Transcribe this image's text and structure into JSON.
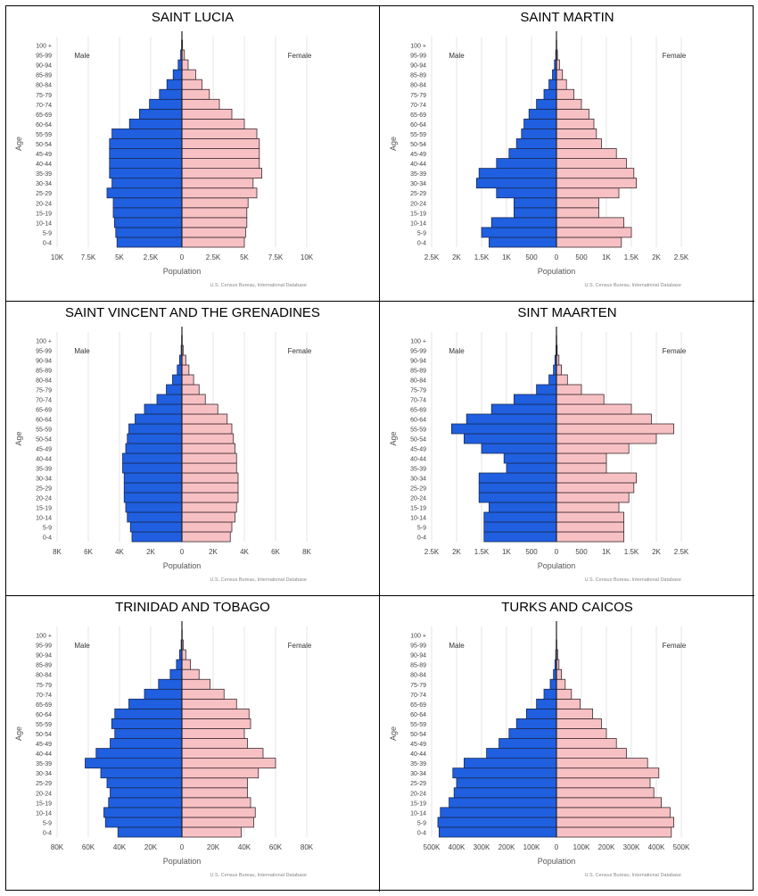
{
  "chart_data": [
    {
      "type": "bar",
      "title": "SAINT LUCIA",
      "xlabel": "Population",
      "ylabel": "Age",
      "male_label": "Male",
      "female_label": "Female",
      "source": "U.S. Census Bureau, International Database",
      "xlim": [
        -10000,
        10000
      ],
      "x_ticks": [
        -10000,
        -7500,
        -5000,
        -2500,
        0,
        2500,
        5000,
        7500,
        10000
      ],
      "x_tick_labels": [
        "10K",
        "7.5K",
        "5K",
        "2.5K",
        "0",
        "2.5K",
        "5K",
        "7.5K",
        "10K"
      ],
      "categories": [
        "0-4",
        "5-9",
        "10-14",
        "15-19",
        "20-24",
        "25-29",
        "30-34",
        "35-39",
        "40-44",
        "45-49",
        "50-54",
        "55-59",
        "60-64",
        "65-69",
        "70-74",
        "75-79",
        "80-84",
        "85-89",
        "90-94",
        "95-99",
        "100 +"
      ],
      "series": [
        {
          "name": "Male",
          "color": "#1f5fe0",
          "values": [
            5200,
            5300,
            5400,
            5500,
            5500,
            6000,
            5600,
            5800,
            5800,
            5800,
            5800,
            5600,
            4200,
            3400,
            2600,
            1800,
            1200,
            700,
            300,
            100,
            30
          ]
        },
        {
          "name": "Female",
          "color": "#f7c1c4",
          "values": [
            5000,
            5100,
            5200,
            5200,
            5300,
            6000,
            5700,
            6400,
            6200,
            6200,
            6200,
            6000,
            5000,
            4000,
            3000,
            2200,
            1600,
            1100,
            500,
            200,
            50
          ]
        }
      ]
    },
    {
      "type": "bar",
      "title": "SAINT MARTIN",
      "xlabel": "Population",
      "ylabel": "Age",
      "male_label": "Male",
      "female_label": "Female",
      "source": "U.S. Census Bureau, International Database",
      "xlim": [
        -2500,
        2500
      ],
      "x_ticks": [
        -2500,
        -2000,
        -1500,
        -1000,
        -500,
        0,
        500,
        1000,
        1500,
        2000,
        2500
      ],
      "x_tick_labels": [
        "2.5K",
        "2K",
        "1.5K",
        "1K",
        "500",
        "0",
        "500",
        "1K",
        "1.5K",
        "2K",
        "2.5K"
      ],
      "categories": [
        "0-4",
        "5-9",
        "10-14",
        "15-19",
        "20-24",
        "25-29",
        "30-34",
        "35-39",
        "40-44",
        "45-49",
        "50-54",
        "55-59",
        "60-64",
        "65-69",
        "70-74",
        "75-79",
        "80-84",
        "85-89",
        "90-94",
        "95-99",
        "100 +"
      ],
      "series": [
        {
          "name": "Male",
          "color": "#1f5fe0",
          "values": [
            1350,
            1500,
            1300,
            850,
            850,
            1200,
            1600,
            1550,
            1200,
            950,
            800,
            700,
            650,
            550,
            400,
            250,
            150,
            80,
            40,
            15,
            5
          ]
        },
        {
          "name": "Female",
          "color": "#f7c1c4",
          "values": [
            1300,
            1500,
            1350,
            850,
            850,
            1250,
            1600,
            1550,
            1400,
            1200,
            900,
            800,
            750,
            650,
            500,
            350,
            200,
            120,
            60,
            20,
            5
          ]
        }
      ]
    },
    {
      "type": "bar",
      "title": "SAINT VINCENT AND THE GRENADINES",
      "xlabel": "Population",
      "ylabel": "Age",
      "male_label": "Male",
      "female_label": "Female",
      "source": "U.S. Census Bureau, International Database",
      "xlim": [
        -8000,
        8000
      ],
      "x_ticks": [
        -8000,
        -6000,
        -4000,
        -2000,
        0,
        2000,
        4000,
        6000,
        8000
      ],
      "x_tick_labels": [
        "8K",
        "6K",
        "4K",
        "2K",
        "0",
        "2K",
        "4K",
        "6K",
        "8K"
      ],
      "categories": [
        "0-4",
        "5-9",
        "10-14",
        "15-19",
        "20-24",
        "25-29",
        "30-34",
        "35-39",
        "40-44",
        "45-49",
        "50-54",
        "55-59",
        "60-64",
        "65-69",
        "70-74",
        "75-79",
        "80-84",
        "85-89",
        "90-94",
        "95-99",
        "100 +"
      ],
      "series": [
        {
          "name": "Male",
          "color": "#1f5fe0",
          "values": [
            3200,
            3300,
            3500,
            3600,
            3700,
            3700,
            3700,
            3800,
            3800,
            3600,
            3500,
            3400,
            3000,
            2400,
            1600,
            1000,
            600,
            300,
            150,
            50,
            20
          ]
        },
        {
          "name": "Female",
          "color": "#f7c1c4",
          "values": [
            3100,
            3200,
            3400,
            3500,
            3600,
            3600,
            3600,
            3500,
            3500,
            3400,
            3300,
            3200,
            2900,
            2300,
            1500,
            1100,
            750,
            450,
            250,
            80,
            20
          ]
        }
      ]
    },
    {
      "type": "bar",
      "title": "SINT MAARTEN",
      "xlabel": "Population",
      "ylabel": "Age",
      "male_label": "Male",
      "female_label": "Female",
      "source": "U.S. Census Bureau, International Database",
      "xlim": [
        -2500,
        2500
      ],
      "x_ticks": [
        -2500,
        -2000,
        -1500,
        -1000,
        -500,
        0,
        500,
        1000,
        1500,
        2000,
        2500
      ],
      "x_tick_labels": [
        "2.5K",
        "2K",
        "1.5K",
        "1K",
        "500",
        "0",
        "500",
        "1K",
        "1.5K",
        "2K",
        "2.5K"
      ],
      "categories": [
        "0-4",
        "5-9",
        "10-14",
        "15-19",
        "20-24",
        "25-29",
        "30-34",
        "35-39",
        "40-44",
        "45-49",
        "50-54",
        "55-59",
        "60-64",
        "65-69",
        "70-74",
        "75-79",
        "80-84",
        "85-89",
        "90-94",
        "95-99",
        "100 +"
      ],
      "series": [
        {
          "name": "Male",
          "color": "#1f5fe0",
          "values": [
            1450,
            1450,
            1450,
            1350,
            1550,
            1550,
            1550,
            1000,
            1050,
            1500,
            1850,
            2100,
            1800,
            1300,
            850,
            400,
            150,
            60,
            30,
            10,
            5
          ]
        },
        {
          "name": "Female",
          "color": "#f7c1c4",
          "values": [
            1350,
            1350,
            1350,
            1250,
            1450,
            1550,
            1600,
            1000,
            1000,
            1450,
            2000,
            2350,
            1900,
            1500,
            950,
            500,
            220,
            100,
            50,
            15,
            5
          ]
        }
      ]
    },
    {
      "type": "bar",
      "title": "TRINIDAD AND TOBAGO",
      "xlabel": "Population",
      "ylabel": "Age",
      "male_label": "Male",
      "female_label": "Female",
      "source": "U.S. Census Bureau, International Database",
      "xlim": [
        -80000,
        80000
      ],
      "x_ticks": [
        -80000,
        -60000,
        -40000,
        -20000,
        0,
        20000,
        40000,
        60000,
        80000
      ],
      "x_tick_labels": [
        "80K",
        "60K",
        "40K",
        "20K",
        "0",
        "20K",
        "40K",
        "60K",
        "80K"
      ],
      "categories": [
        "0-4",
        "5-9",
        "10-14",
        "15-19",
        "20-24",
        "25-29",
        "30-34",
        "35-39",
        "40-44",
        "45-49",
        "50-54",
        "55-59",
        "60-64",
        "65-69",
        "70-74",
        "75-79",
        "80-84",
        "85-89",
        "90-94",
        "95-99",
        "100 +"
      ],
      "series": [
        {
          "name": "Male",
          "color": "#1f5fe0",
          "values": [
            41000,
            49000,
            50000,
            47000,
            46000,
            48000,
            52000,
            62000,
            55000,
            46000,
            43000,
            45000,
            43000,
            34000,
            24000,
            15000,
            7500,
            3500,
            1500,
            500,
            100
          ]
        },
        {
          "name": "Female",
          "color": "#f7c1c4",
          "values": [
            38000,
            46000,
            47000,
            44000,
            42000,
            42000,
            49000,
            60000,
            52000,
            42000,
            40000,
            44000,
            43000,
            35000,
            27000,
            18000,
            11000,
            5500,
            2500,
            800,
            200
          ]
        }
      ]
    },
    {
      "type": "bar",
      "title": "TURKS AND CAICOS",
      "xlabel": "Population",
      "ylabel": "Age",
      "male_label": "Male",
      "female_label": "Female",
      "source": "U.S. Census Bureau, International Database",
      "xlim": [
        -500000,
        500000
      ],
      "x_ticks": [
        -500000,
        -400000,
        -300000,
        -200000,
        -100000,
        0,
        100000,
        200000,
        300000,
        400000,
        500000
      ],
      "x_tick_labels": [
        "500K",
        "400K",
        "300K",
        "200K",
        "100K",
        "0",
        "100K",
        "200K",
        "300K",
        "400K",
        "500K"
      ],
      "categories": [
        "0-4",
        "5-9",
        "10-14",
        "15-19",
        "20-24",
        "25-29",
        "30-34",
        "35-39",
        "40-44",
        "45-49",
        "50-54",
        "55-59",
        "60-64",
        "65-69",
        "70-74",
        "75-79",
        "80-84",
        "85-89",
        "90-94",
        "95-99",
        "100 +"
      ],
      "series": [
        {
          "name": "Male",
          "color": "#1f5fe0",
          "values": [
            470000,
            475000,
            465000,
            430000,
            410000,
            400000,
            415000,
            370000,
            280000,
            230000,
            190000,
            160000,
            120000,
            80000,
            50000,
            25000,
            12000,
            6000,
            3000,
            1000,
            300
          ]
        },
        {
          "name": "Female",
          "color": "#f7c1c4",
          "values": [
            460000,
            470000,
            455000,
            420000,
            390000,
            375000,
            410000,
            365000,
            280000,
            240000,
            200000,
            180000,
            145000,
            95000,
            60000,
            35000,
            20000,
            10000,
            5000,
            1500,
            400
          ]
        }
      ]
    }
  ]
}
